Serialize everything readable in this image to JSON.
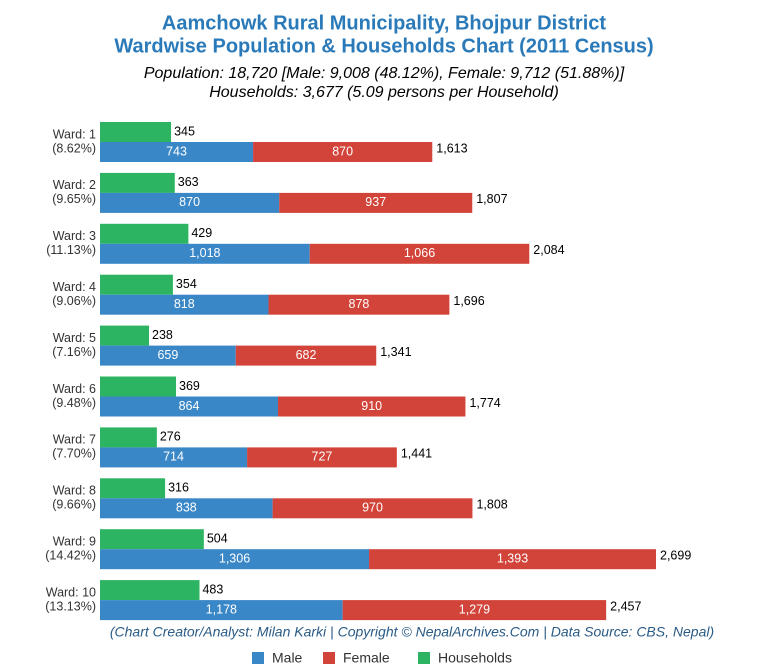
{
  "chart_data": {
    "type": "bar",
    "title": [
      "Aamchowk Rural Municipality, Bhojpur District",
      "Wardwise Population & Households Chart (2011 Census)"
    ],
    "subtitle": [
      "Population: 18,720 [Male: 9,008 (48.12%), Female: 9,712 (51.88%)]",
      "Households: 3,677 (5.09 persons per Household)"
    ],
    "caption": "(Chart Creator/Analyst: Milan Karki | Copyright © NepalArchives.Com | Data Source: CBS, Nepal)",
    "categories": [
      [
        "Ward: 1",
        "(8.62%)"
      ],
      [
        "Ward: 2",
        "(9.65%)"
      ],
      [
        "Ward: 3",
        "(11.13%)"
      ],
      [
        "Ward: 4",
        "(9.06%)"
      ],
      [
        "Ward: 5",
        "(7.16%)"
      ],
      [
        "Ward: 6",
        "(9.48%)"
      ],
      [
        "Ward: 7",
        "(7.70%)"
      ],
      [
        "Ward: 8",
        "(9.66%)"
      ],
      [
        "Ward: 9",
        "(14.42%)"
      ],
      [
        "Ward: 10",
        "(13.13%)"
      ]
    ],
    "series": [
      {
        "name": "Male",
        "color": "#3a87c8",
        "values": [
          743,
          870,
          1018,
          818,
          659,
          864,
          714,
          838,
          1306,
          1178
        ],
        "value_labels": [
          "743",
          "870",
          "1,018",
          "818",
          "659",
          "864",
          "714",
          "838",
          "1,306",
          "1,178"
        ]
      },
      {
        "name": "Female",
        "color": "#d2443a",
        "values": [
          870,
          937,
          1066,
          878,
          682,
          910,
          727,
          970,
          1393,
          1279
        ],
        "value_labels": [
          "870",
          "937",
          "1,066",
          "878",
          "682",
          "910",
          "727",
          "970",
          "1,393",
          "1,279"
        ]
      },
      {
        "name": "Households",
        "color": "#2db462",
        "values": [
          345,
          363,
          429,
          354,
          238,
          369,
          276,
          316,
          504,
          483
        ]
      }
    ],
    "totals": {
      "values": [
        1613,
        1807,
        2084,
        1696,
        1341,
        1774,
        1441,
        1808,
        2699,
        2457
      ],
      "value_labels": [
        "1,613",
        "1,807",
        "2,084",
        "1,696",
        "1,341",
        "1,774",
        "1,441",
        "1,808",
        "2,699",
        "2,457"
      ]
    }
  }
}
